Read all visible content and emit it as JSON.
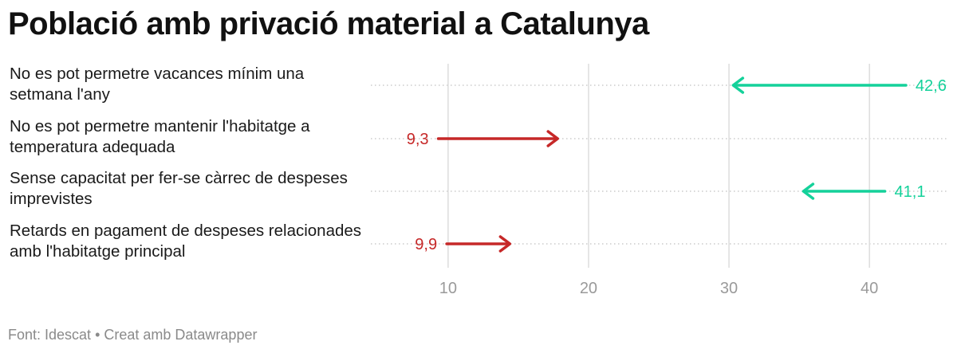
{
  "title": "Població amb privació material a Catalunya",
  "footer": {
    "source": "Font: Idescat",
    "separator": "•",
    "credit": "Creat amb Datawrapper"
  },
  "colors": {
    "increase": "#c62828",
    "decrease": "#14d19a",
    "grid": "#dddddd",
    "dots": "#cccccc"
  },
  "chart_data": {
    "type": "arrow",
    "title": "Població amb privació material a Catalunya",
    "xlim": [
      4.5,
      45.5
    ],
    "x_ticks": [
      10,
      20,
      30,
      40
    ],
    "grid": true,
    "rows": [
      {
        "label": "No es pot permetre vacances mínim una setmana l'any",
        "start": 42.6,
        "end": 30.3,
        "value_label": "42,6",
        "color": "#14d19a"
      },
      {
        "label": "No es pot permetre mantenir l'habitatge a temperatura adequada",
        "start": 9.3,
        "end": 17.8,
        "value_label": "9,3",
        "color": "#c62828"
      },
      {
        "label": "Sense capacitat per fer-se càrrec de despeses imprevistes",
        "start": 41.1,
        "end": 35.3,
        "value_label": "41,1",
        "color": "#14d19a"
      },
      {
        "label": "Retards en pagament de despeses relacionades amb l'habitatge principal",
        "start": 9.9,
        "end": 14.4,
        "value_label": "9,9",
        "color": "#c62828"
      }
    ]
  }
}
